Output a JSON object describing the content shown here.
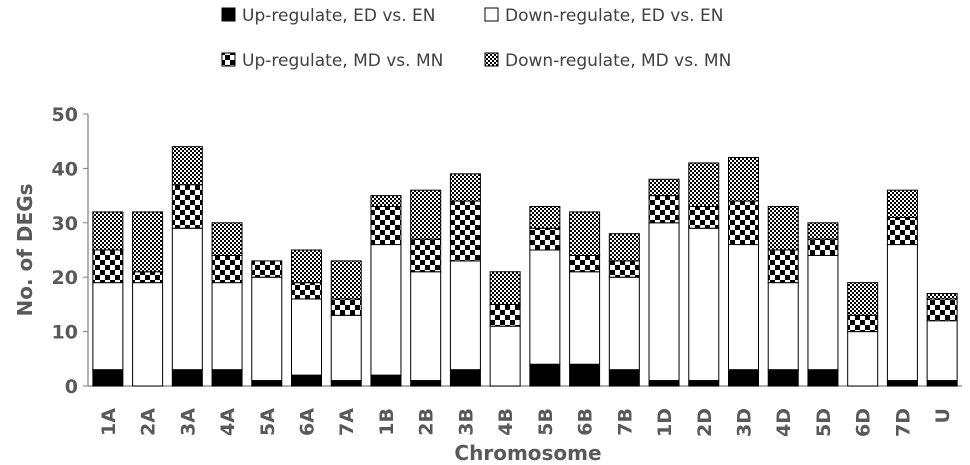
{
  "chart_data": {
    "type": "bar",
    "stacked": true,
    "xlabel": "Chromosome",
    "ylabel": "No. of DEGs",
    "ylim": [
      0,
      50
    ],
    "yticks": [
      0,
      10,
      20,
      30,
      40,
      50
    ],
    "grid": false,
    "legend_position": "top",
    "categories": [
      "1A",
      "2A",
      "3A",
      "4A",
      "5A",
      "6A",
      "7A",
      "1B",
      "2B",
      "3B",
      "4B",
      "5B",
      "6B",
      "7B",
      "1D",
      "2D",
      "3D",
      "4D",
      "5D",
      "6D",
      "7D",
      "U"
    ],
    "series": [
      {
        "name": "Up-regulate, ED vs. EN",
        "pattern": "solid-black",
        "values": [
          3,
          0,
          3,
          3,
          1,
          2,
          1,
          2,
          1,
          3,
          0,
          4,
          4,
          3,
          1,
          1,
          3,
          3,
          3,
          0,
          1,
          1
        ]
      },
      {
        "name": "Down-regulate, ED vs. EN",
        "pattern": "white",
        "values": [
          16,
          19,
          26,
          16,
          19,
          14,
          12,
          24,
          20,
          20,
          11,
          21,
          17,
          17,
          29,
          28,
          23,
          16,
          21,
          10,
          25,
          11
        ]
      },
      {
        "name": "Up-regulate, MD vs. MN",
        "pattern": "large-checker",
        "values": [
          6,
          2,
          8,
          5,
          3,
          3,
          3,
          7,
          6,
          11,
          4,
          4,
          3,
          3,
          5,
          4,
          8,
          6,
          3,
          3,
          5,
          4
        ]
      },
      {
        "name": "Down-regulate, MD vs. MN",
        "pattern": "small-checker",
        "values": [
          7,
          11,
          7,
          6,
          0,
          6,
          7,
          2,
          9,
          5,
          6,
          4,
          8,
          5,
          3,
          8,
          8,
          8,
          3,
          6,
          5,
          1
        ]
      }
    ]
  }
}
